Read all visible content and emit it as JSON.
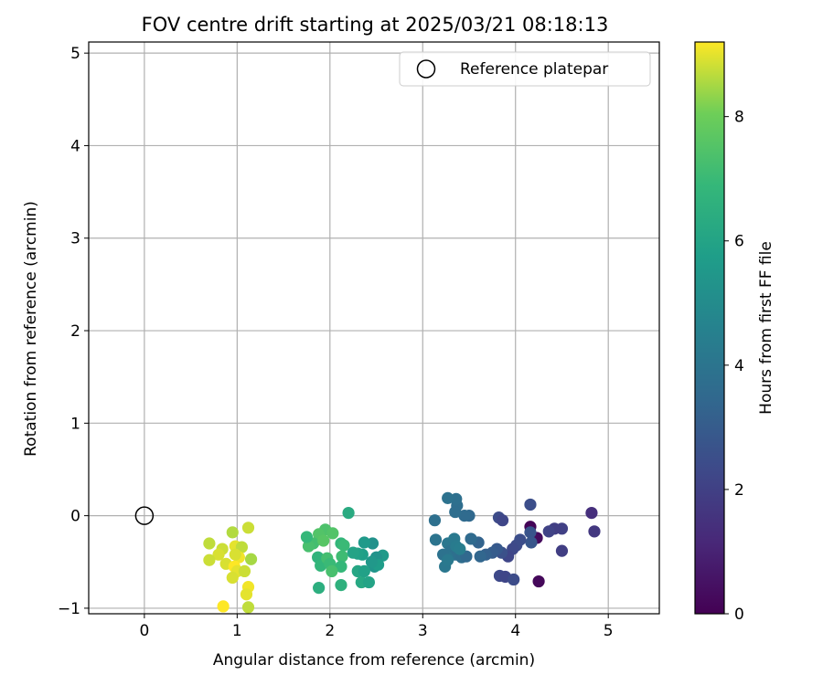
{
  "chart_data": {
    "type": "scatter",
    "title": "FOV centre drift starting at 2025/03/21 08:18:13",
    "xlabel": "Angular distance from reference (arcmin)",
    "ylabel": "Rotation from reference (arcmin)",
    "xlim": [
      -0.6,
      5.55
    ],
    "ylim": [
      -1.06,
      5.12
    ],
    "xticks": [
      "0",
      "1",
      "2",
      "3",
      "4",
      "5"
    ],
    "yticks": [
      "−1",
      "0",
      "1",
      "2",
      "3",
      "4",
      "5"
    ],
    "xtick_values": [
      0,
      1,
      2,
      3,
      4,
      5
    ],
    "ytick_values": [
      -1,
      0,
      1,
      2,
      3,
      4,
      5
    ],
    "grid": true,
    "legend": {
      "position": "upper right",
      "label": "Reference platepar"
    },
    "reference_point": {
      "x": 0,
      "y": 0
    },
    "colorbar": {
      "label": "Hours from first FF file",
      "range": [
        0,
        9.2
      ],
      "ticks": [
        "0",
        "2",
        "4",
        "6",
        "8"
      ],
      "tick_values": [
        0,
        2,
        4,
        6,
        8
      ],
      "colormap": "viridis"
    },
    "series": [
      {
        "points": [
          {
            "x": 4.16,
            "y": -0.12,
            "h": 0.1
          },
          {
            "x": 4.23,
            "y": -0.24,
            "h": 0.3
          },
          {
            "x": 4.25,
            "y": -0.71,
            "h": 0.2
          },
          {
            "x": 4.82,
            "y": 0.03,
            "h": 1.4
          },
          {
            "x": 4.85,
            "y": -0.17,
            "h": 1.7
          },
          {
            "x": 4.5,
            "y": -0.38,
            "h": 1.9
          },
          {
            "x": 4.5,
            "y": -0.14,
            "h": 2.0
          },
          {
            "x": 4.42,
            "y": -0.14,
            "h": 1.9
          },
          {
            "x": 4.36,
            "y": -0.17,
            "h": 2.1
          },
          {
            "x": 4.16,
            "y": 0.12,
            "h": 2.5
          },
          {
            "x": 4.16,
            "y": -0.18,
            "h": 2.7
          },
          {
            "x": 4.17,
            "y": -0.29,
            "h": 2.8
          },
          {
            "x": 4.05,
            "y": -0.26,
            "h": 2.5
          },
          {
            "x": 4.01,
            "y": -0.32,
            "h": 2.4
          },
          {
            "x": 3.97,
            "y": -0.36,
            "h": 2.3
          },
          {
            "x": 3.92,
            "y": -0.44,
            "h": 2.2
          },
          {
            "x": 3.85,
            "y": -0.4,
            "h": 2.6
          },
          {
            "x": 3.8,
            "y": -0.36,
            "h": 2.9
          },
          {
            "x": 3.82,
            "y": -0.02,
            "h": 2.4
          },
          {
            "x": 3.86,
            "y": -0.05,
            "h": 2.2
          },
          {
            "x": 3.83,
            "y": -0.65,
            "h": 2.3
          },
          {
            "x": 3.89,
            "y": -0.66,
            "h": 2.2
          },
          {
            "x": 3.98,
            "y": -0.69,
            "h": 2.4
          },
          {
            "x": 3.75,
            "y": -0.4,
            "h": 3.0
          },
          {
            "x": 3.68,
            "y": -0.42,
            "h": 3.2
          },
          {
            "x": 3.62,
            "y": -0.44,
            "h": 3.4
          },
          {
            "x": 3.6,
            "y": -0.29,
            "h": 3.3
          },
          {
            "x": 3.52,
            "y": -0.25,
            "h": 3.6
          },
          {
            "x": 3.5,
            "y": 0.0,
            "h": 3.5
          },
          {
            "x": 3.45,
            "y": 0.0,
            "h": 3.6
          },
          {
            "x": 3.37,
            "y": 0.11,
            "h": 3.7
          },
          {
            "x": 3.36,
            "y": 0.18,
            "h": 3.8
          },
          {
            "x": 3.27,
            "y": 0.19,
            "h": 3.9
          },
          {
            "x": 3.35,
            "y": 0.04,
            "h": 3.7
          },
          {
            "x": 3.13,
            "y": -0.05,
            "h": 3.8
          },
          {
            "x": 3.14,
            "y": -0.26,
            "h": 4.0
          },
          {
            "x": 3.27,
            "y": -0.3,
            "h": 4.1
          },
          {
            "x": 3.34,
            "y": -0.25,
            "h": 4.2
          },
          {
            "x": 3.3,
            "y": -0.38,
            "h": 3.9
          },
          {
            "x": 3.35,
            "y": -0.42,
            "h": 3.8
          },
          {
            "x": 3.42,
            "y": -0.45,
            "h": 3.7
          },
          {
            "x": 3.47,
            "y": -0.44,
            "h": 3.5
          },
          {
            "x": 3.26,
            "y": -0.44,
            "h": 4.0
          },
          {
            "x": 3.22,
            "y": -0.42,
            "h": 3.9
          },
          {
            "x": 3.24,
            "y": -0.55,
            "h": 4.1
          },
          {
            "x": 3.27,
            "y": -0.48,
            "h": 4.2
          },
          {
            "x": 3.36,
            "y": -0.33,
            "h": 4.3
          },
          {
            "x": 3.4,
            "y": -0.36,
            "h": 4.4
          },
          {
            "x": 2.57,
            "y": -0.43,
            "h": 5.6
          },
          {
            "x": 2.46,
            "y": -0.3,
            "h": 5.2
          },
          {
            "x": 2.5,
            "y": -0.45,
            "h": 5.3
          },
          {
            "x": 2.48,
            "y": -0.55,
            "h": 5.4
          },
          {
            "x": 2.52,
            "y": -0.53,
            "h": 5.7
          },
          {
            "x": 2.45,
            "y": -0.5,
            "h": 5.5
          },
          {
            "x": 2.37,
            "y": -0.29,
            "h": 5.6
          },
          {
            "x": 2.35,
            "y": -0.42,
            "h": 5.8
          },
          {
            "x": 2.3,
            "y": -0.41,
            "h": 5.9
          },
          {
            "x": 2.25,
            "y": -0.4,
            "h": 6.0
          },
          {
            "x": 2.3,
            "y": -0.6,
            "h": 6.1
          },
          {
            "x": 2.34,
            "y": -0.72,
            "h": 6.2
          },
          {
            "x": 2.42,
            "y": -0.72,
            "h": 6.0
          },
          {
            "x": 2.37,
            "y": -0.6,
            "h": 5.9
          },
          {
            "x": 2.2,
            "y": 0.03,
            "h": 6.3
          },
          {
            "x": 2.12,
            "y": -0.3,
            "h": 6.8
          },
          {
            "x": 2.15,
            "y": -0.32,
            "h": 7.0
          },
          {
            "x": 2.13,
            "y": -0.44,
            "h": 7.1
          },
          {
            "x": 2.12,
            "y": -0.55,
            "h": 6.9
          },
          {
            "x": 2.12,
            "y": -0.75,
            "h": 6.6
          },
          {
            "x": 1.88,
            "y": -0.78,
            "h": 6.5
          },
          {
            "x": 1.87,
            "y": -0.45,
            "h": 6.7
          },
          {
            "x": 1.9,
            "y": -0.54,
            "h": 6.8
          },
          {
            "x": 1.97,
            "y": -0.46,
            "h": 7.2
          },
          {
            "x": 2.0,
            "y": -0.52,
            "h": 7.0
          },
          {
            "x": 2.02,
            "y": -0.6,
            "h": 7.3
          },
          {
            "x": 1.95,
            "y": -0.15,
            "h": 7.4
          },
          {
            "x": 1.88,
            "y": -0.2,
            "h": 7.5
          },
          {
            "x": 1.82,
            "y": -0.3,
            "h": 7.2
          },
          {
            "x": 1.77,
            "y": -0.33,
            "h": 7.3
          },
          {
            "x": 1.75,
            "y": -0.23,
            "h": 6.9
          },
          {
            "x": 1.93,
            "y": -0.27,
            "h": 7.6
          },
          {
            "x": 2.03,
            "y": -0.19,
            "h": 7.5
          },
          {
            "x": 1.12,
            "y": -0.13,
            "h": 8.8
          },
          {
            "x": 0.95,
            "y": -0.18,
            "h": 8.6
          },
          {
            "x": 0.7,
            "y": -0.3,
            "h": 8.7
          },
          {
            "x": 0.84,
            "y": -0.36,
            "h": 8.8
          },
          {
            "x": 0.8,
            "y": -0.42,
            "h": 8.9
          },
          {
            "x": 0.7,
            "y": -0.48,
            "h": 8.8
          },
          {
            "x": 0.88,
            "y": -0.52,
            "h": 8.9
          },
          {
            "x": 0.98,
            "y": -0.33,
            "h": 9.0
          },
          {
            "x": 1.05,
            "y": -0.34,
            "h": 8.7
          },
          {
            "x": 1.15,
            "y": -0.47,
            "h": 8.5
          },
          {
            "x": 1.02,
            "y": -0.45,
            "h": 9.1
          },
          {
            "x": 0.97,
            "y": -0.55,
            "h": 9.2
          },
          {
            "x": 1.0,
            "y": -0.6,
            "h": 9.0
          },
          {
            "x": 0.95,
            "y": -0.67,
            "h": 8.9
          },
          {
            "x": 1.08,
            "y": -0.6,
            "h": 8.8
          },
          {
            "x": 1.12,
            "y": -0.77,
            "h": 9.1
          },
          {
            "x": 1.1,
            "y": -0.85,
            "h": 9.0
          },
          {
            "x": 0.85,
            "y": -0.98,
            "h": 9.2
          },
          {
            "x": 1.12,
            "y": -0.99,
            "h": 8.7
          },
          {
            "x": 0.98,
            "y": -0.42,
            "h": 8.9
          }
        ]
      }
    ]
  }
}
